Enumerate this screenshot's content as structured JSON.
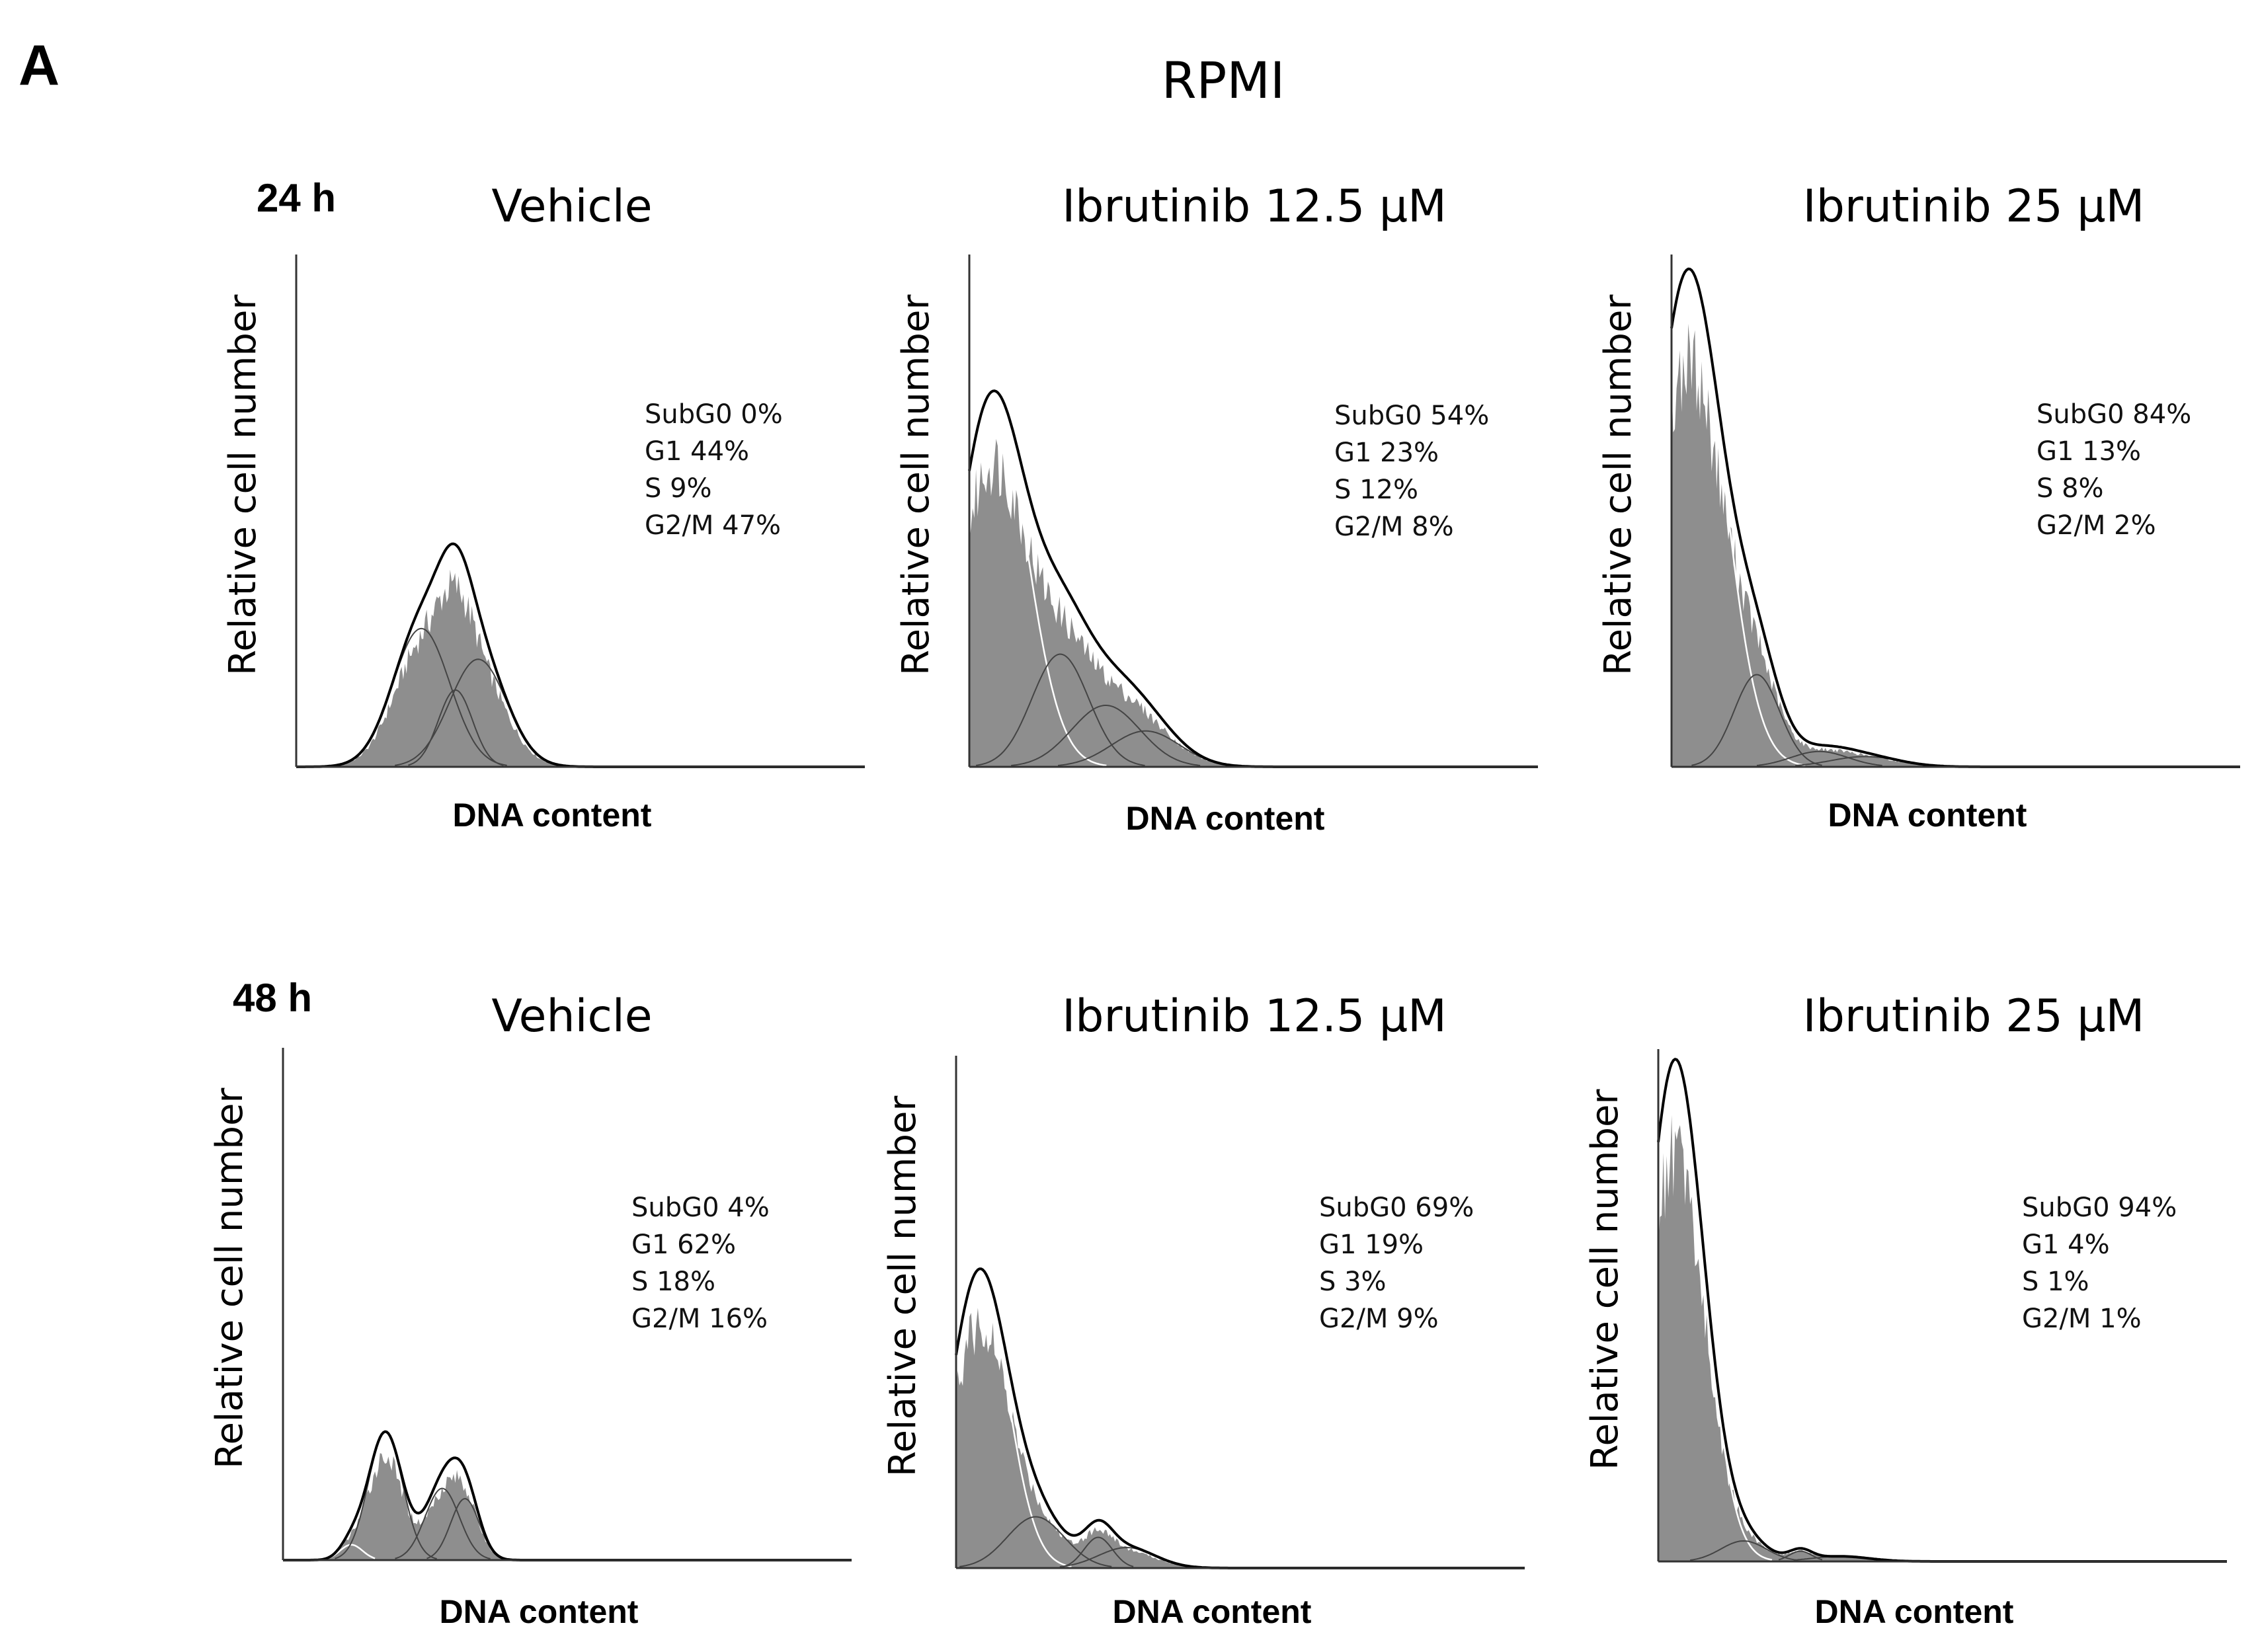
{
  "figure": {
    "panel_letter": "A",
    "title": "RPMI",
    "rows": [
      {
        "label": "24 h"
      },
      {
        "label": "48 h"
      }
    ]
  },
  "colors": {
    "histogram_fill": "#8e8e8e",
    "envelope": "#000000",
    "component": "#444444"
  },
  "chart_data": [
    {
      "type": "area",
      "title": "Vehicle",
      "time": "24 h",
      "xlabel": "DNA content",
      "ylabel": "Relative cell number",
      "xlim": [
        0,
        100
      ],
      "ylim": [
        0,
        100
      ],
      "stats": {
        "subg0": "SubG0 0%",
        "g1": "G1 44%",
        "s": "S 9%",
        "g2m": "G2/M 47%"
      },
      "components": [
        {
          "name": "SubG0",
          "amp": 0,
          "mu": 20,
          "sigma": 4
        },
        {
          "name": "G1",
          "amp": 27,
          "mu": 22,
          "sigma": 5
        },
        {
          "name": "S",
          "amp": 15,
          "mu": 28,
          "sigma": 3
        },
        {
          "name": "G2/M",
          "amp": 21,
          "mu": 32,
          "sigma": 5
        }
      ]
    },
    {
      "type": "area",
      "title": "Ibrutinib 12.5 μM",
      "time": "24 h",
      "xlabel": "DNA content",
      "ylabel": "Relative cell number",
      "xlim": [
        0,
        100
      ],
      "ylim": [
        0,
        100
      ],
      "stats": {
        "subg0": "SubG0 54%",
        "g1": "G1 23%",
        "s": "S 12%",
        "g2m": "G2/M 8%"
      },
      "components": [
        {
          "name": "SubG0",
          "amp": 72,
          "mu": 4,
          "sigma": 6
        },
        {
          "name": "G1",
          "amp": 22,
          "mu": 16,
          "sigma": 5
        },
        {
          "name": "S",
          "amp": 12,
          "mu": 24,
          "sigma": 6
        },
        {
          "name": "G2/M",
          "amp": 7,
          "mu": 31,
          "sigma": 6
        }
      ]
    },
    {
      "type": "area",
      "title": "Ibrutinib 25 μM",
      "time": "24 h",
      "xlabel": "DNA content",
      "ylabel": "Relative cell number",
      "xlim": [
        0,
        100
      ],
      "ylim": [
        0,
        100
      ],
      "stats": {
        "subg0": "SubG0 84%",
        "g1": "G1 13%",
        "s": "S 8%",
        "g2m": "G2/M 2%"
      },
      "components": [
        {
          "name": "SubG0",
          "amp": 97,
          "mu": 3,
          "sigma": 6
        },
        {
          "name": "G1",
          "amp": 18,
          "mu": 15,
          "sigma": 4
        },
        {
          "name": "S",
          "amp": 3,
          "mu": 26,
          "sigma": 5
        },
        {
          "name": "G2/M",
          "amp": 2,
          "mu": 34,
          "sigma": 6
        }
      ]
    },
    {
      "type": "area",
      "title": "Vehicle",
      "time": "48 h",
      "xlabel": "DNA content",
      "ylabel": "Relative cell number",
      "xlim": [
        0,
        100
      ],
      "ylim": [
        0,
        100
      ],
      "stats": {
        "subg0": "SubG0 4%",
        "g1": "G1 62%",
        "s": "S 18%",
        "g2m": "G2/M 16%"
      },
      "components": [
        {
          "name": "SubG0",
          "amp": 3,
          "mu": 12,
          "sigma": 2
        },
        {
          "name": "G1",
          "amp": 25,
          "mu": 18,
          "sigma": 3
        },
        {
          "name": "S",
          "amp": 14,
          "mu": 28,
          "sigma": 3
        },
        {
          "name": "G2/M",
          "amp": 12,
          "mu": 32,
          "sigma": 2.5
        }
      ]
    },
    {
      "type": "area",
      "title": "Ibrutinib 12.5 μM",
      "time": "48 h",
      "xlabel": "DNA content",
      "ylabel": "Relative cell number",
      "xlim": [
        0,
        100
      ],
      "ylim": [
        0,
        100
      ],
      "stats": {
        "subg0": "SubG0 69%",
        "g1": "G1 19%",
        "s": "S 3%",
        "g2m": "G2/M 9%"
      },
      "components": [
        {
          "name": "SubG0",
          "amp": 57,
          "mu": 4,
          "sigma": 5
        },
        {
          "name": "G1",
          "amp": 10,
          "mu": 14,
          "sigma": 5
        },
        {
          "name": "S",
          "amp": 6,
          "mu": 25,
          "sigma": 2.5
        },
        {
          "name": "G2/M",
          "amp": 4,
          "mu": 30,
          "sigma": 5
        }
      ]
    },
    {
      "type": "area",
      "title": "Ibrutinib 25 μM",
      "time": "48 h",
      "xlabel": "DNA content",
      "ylabel": "Relative cell number",
      "xlim": [
        0,
        100
      ],
      "ylim": [
        0,
        100
      ],
      "stats": {
        "subg0": "SubG0 94%",
        "g1": "G1 4%",
        "s": "S 1%",
        "g2m": "G2/M 1%"
      },
      "components": [
        {
          "name": "SubG0",
          "amp": 98,
          "mu": 3,
          "sigma": 5
        },
        {
          "name": "G1",
          "amp": 4,
          "mu": 15,
          "sigma": 4
        },
        {
          "name": "S",
          "amp": 2,
          "mu": 25,
          "sigma": 2
        },
        {
          "name": "G2/M",
          "amp": 1,
          "mu": 32,
          "sigma": 5
        }
      ]
    }
  ]
}
